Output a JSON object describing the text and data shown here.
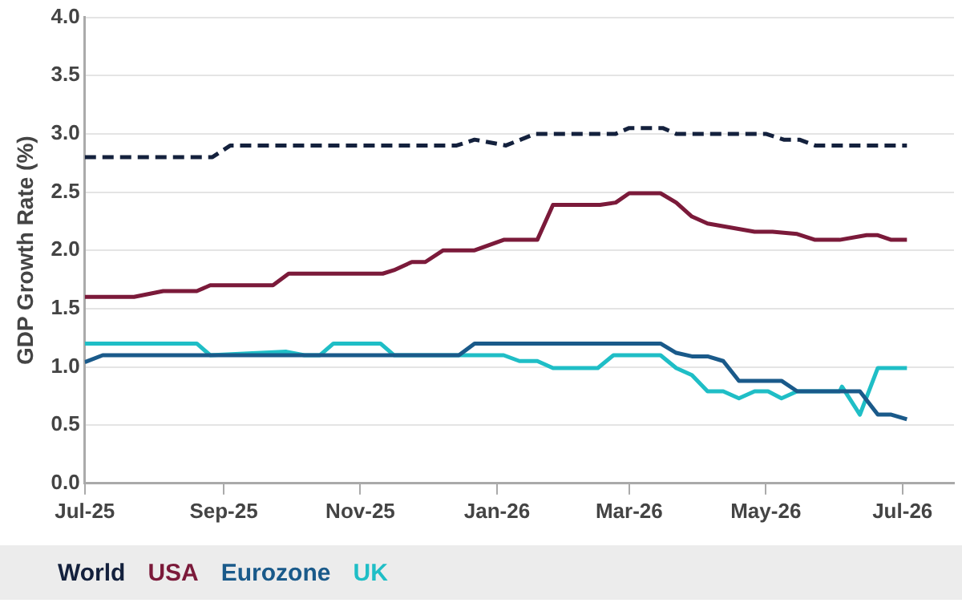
{
  "chart_data": {
    "type": "line",
    "ylabel": "GDP Growth Rate (%)",
    "xlim": [
      "2025-07-01",
      "2026-07-24"
    ],
    "xticks": [
      {
        "value": "2025-07-01",
        "label": "Jul-25"
      },
      {
        "value": "2025-09-01",
        "label": "Sep-25"
      },
      {
        "value": "2025-11-01",
        "label": "Nov-25"
      },
      {
        "value": "2026-01-01",
        "label": "Jan-26"
      },
      {
        "value": "2026-03-01",
        "label": "Mar-26"
      },
      {
        "value": "2026-05-01",
        "label": "May-26"
      },
      {
        "value": "2026-07-01",
        "label": "Jul-26"
      }
    ],
    "ylim": [
      0,
      4
    ],
    "yticks": [
      {
        "value": 0,
        "label": "0.0"
      },
      {
        "value": 0.5,
        "label": "0.5"
      },
      {
        "value": 1,
        "label": "1.0"
      },
      {
        "value": 1.5,
        "label": "1.5"
      },
      {
        "value": 2,
        "label": "2.0"
      },
      {
        "value": 2.5,
        "label": "2.5"
      },
      {
        "value": 3,
        "label": "3.0"
      },
      {
        "value": 3.5,
        "label": "3.5"
      },
      {
        "value": 4,
        "label": "4.0"
      }
    ],
    "grid": "y",
    "legend": "bottom",
    "marker": "none",
    "series": [
      {
        "name": "World",
        "color": "#14213d",
        "line_style": "dashed",
        "x": [
          "2025-07-01",
          "2025-08-27",
          "2025-09-04",
          "2025-12-14",
          "2025-12-22",
          "2026-01-05",
          "2026-01-18",
          "2026-02-23",
          "2026-03-01",
          "2026-03-16",
          "2026-03-22",
          "2026-05-01",
          "2026-05-09",
          "2026-05-16",
          "2026-05-23",
          "2026-07-03"
        ],
        "values": [
          2.8,
          2.8,
          2.9,
          2.9,
          2.95,
          2.9,
          3.0,
          3.0,
          3.05,
          3.05,
          3.0,
          3.0,
          2.95,
          2.95,
          2.9,
          2.9
        ]
      },
      {
        "name": "USA",
        "color": "#7b1a3a",
        "line_style": "solid",
        "x": [
          "2025-07-01",
          "2025-07-23",
          "2025-08-05",
          "2025-08-20",
          "2025-08-26",
          "2025-09-23",
          "2025-09-30",
          "2025-11-11",
          "2025-11-16",
          "2025-11-24",
          "2025-11-30",
          "2025-12-08",
          "2025-12-22",
          "2026-01-04",
          "2026-01-19",
          "2026-01-26",
          "2026-02-16",
          "2026-02-23",
          "2026-03-01",
          "2026-03-15",
          "2026-03-22",
          "2026-03-29",
          "2026-04-05",
          "2026-04-26",
          "2026-05-04",
          "2026-05-15",
          "2026-05-23",
          "2026-06-03",
          "2026-06-15",
          "2026-06-20",
          "2026-06-26",
          "2026-07-03"
        ],
        "values": [
          1.6,
          1.6,
          1.65,
          1.65,
          1.7,
          1.7,
          1.8,
          1.8,
          1.83,
          1.9,
          1.9,
          2.0,
          2.0,
          2.09,
          2.09,
          2.39,
          2.39,
          2.41,
          2.49,
          2.49,
          2.41,
          2.29,
          2.23,
          2.16,
          2.16,
          2.14,
          2.09,
          2.09,
          2.13,
          2.13,
          2.09,
          2.09
        ]
      },
      {
        "name": "Eurozone",
        "color": "#1a5a8a",
        "line_style": "solid",
        "x": [
          "2025-07-01",
          "2025-07-09",
          "2025-12-15",
          "2025-12-22",
          "2026-03-15",
          "2026-03-22",
          "2026-03-29",
          "2026-04-05",
          "2026-04-12",
          "2026-04-19",
          "2026-05-08",
          "2026-05-15",
          "2026-06-12",
          "2026-06-20",
          "2026-06-26",
          "2026-07-03"
        ],
        "values": [
          1.04,
          1.1,
          1.1,
          1.2,
          1.2,
          1.12,
          1.09,
          1.09,
          1.05,
          0.88,
          0.88,
          0.79,
          0.79,
          0.59,
          0.59,
          0.55
        ]
      },
      {
        "name": "UK",
        "color": "#1fbec6",
        "line_style": "solid",
        "x": [
          "2025-07-01",
          "2025-08-20",
          "2025-08-26",
          "2025-09-29",
          "2025-10-07",
          "2025-10-14",
          "2025-10-20",
          "2025-11-10",
          "2025-11-16",
          "2026-01-04",
          "2026-01-11",
          "2026-01-19",
          "2026-01-26",
          "2026-02-15",
          "2026-02-22",
          "2026-03-15",
          "2026-03-22",
          "2026-03-29",
          "2026-04-05",
          "2026-04-12",
          "2026-04-19",
          "2026-04-26",
          "2026-05-02",
          "2026-05-08",
          "2026-05-15",
          "2026-06-03",
          "2026-06-04",
          "2026-06-12",
          "2026-06-20",
          "2026-07-03"
        ],
        "values": [
          1.2,
          1.2,
          1.1,
          1.13,
          1.1,
          1.1,
          1.2,
          1.2,
          1.1,
          1.1,
          1.05,
          1.05,
          0.99,
          0.99,
          1.1,
          1.1,
          0.99,
          0.93,
          0.79,
          0.79,
          0.73,
          0.79,
          0.79,
          0.73,
          0.79,
          0.79,
          0.83,
          0.59,
          0.99,
          0.99
        ]
      }
    ]
  }
}
